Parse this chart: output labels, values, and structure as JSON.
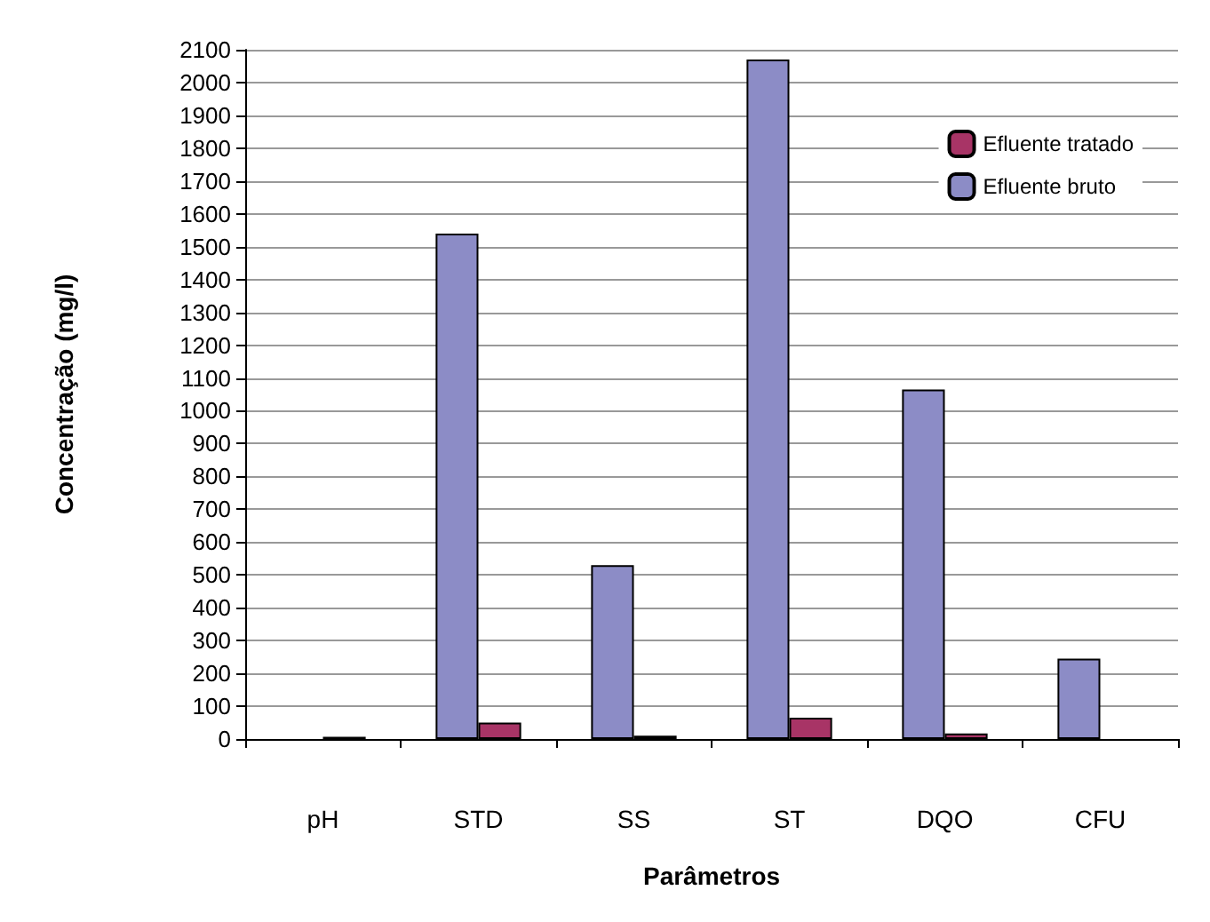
{
  "chart_data": {
    "type": "bar",
    "xlabel": "Parâmetros",
    "ylabel": "Concentração (mg/l)",
    "categories": [
      "pH",
      "STD",
      "SS",
      "ST",
      "DQO",
      "CFU"
    ],
    "series": [
      {
        "name": "Efluente bruto",
        "color": "#8c8cc6",
        "values": [
          null,
          1540,
          530,
          2070,
          1065,
          245
        ]
      },
      {
        "name": "Efluente tratado",
        "color": "#a83466",
        "values": [
          7,
          50,
          10,
          65,
          17,
          null
        ]
      }
    ],
    "ylim": [
      0,
      2100
    ],
    "yticks": [
      0,
      100,
      200,
      300,
      400,
      500,
      600,
      700,
      800,
      900,
      1000,
      1100,
      1200,
      1300,
      1400,
      1500,
      1600,
      1700,
      1800,
      1900,
      2000,
      2100
    ],
    "grid": "y",
    "legend": "top right"
  }
}
